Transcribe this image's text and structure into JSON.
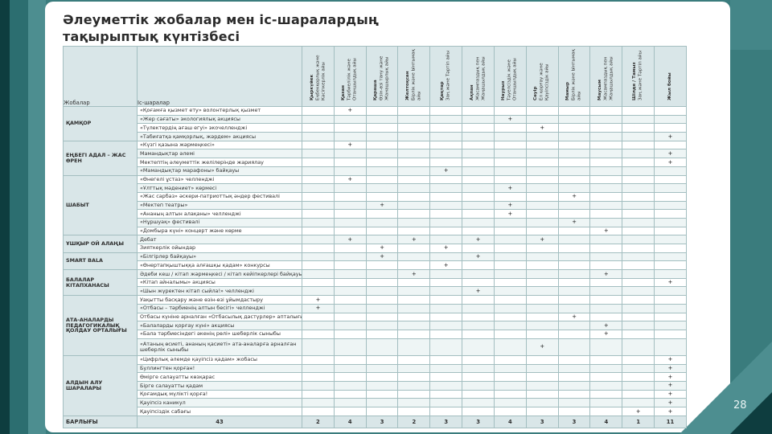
{
  "slide": {
    "title": "Әлеуметтік жобалар мен іс-шаралардың\nтақырыптық күнтізбесі",
    "page_number": "28"
  },
  "colors": {
    "background_teal": "#3a7c7d",
    "dark_teal": "#0e3d3f",
    "mid_teal": "#2c6e70",
    "light_teal": "#4d8e90",
    "card_white": "#ffffff",
    "header_fill": "#d9e6e8",
    "stripe_fill": "#eef5f5",
    "grid_line": "#a3bec0"
  },
  "table": {
    "col1_header": "Жобалар",
    "col2_header": "Іс-шаралар",
    "mark_symbol": "+",
    "months": [
      {
        "month": "Қыркүйек",
        "theme": "Еңбекқорлық және Кәсіпкерлік айы"
      },
      {
        "month": "Қазан",
        "theme": "Тәрбиелілік және Отаншылдық айы"
      },
      {
        "month": "Қараша",
        "theme": "Өзін-өзі тану және Жанашырлық айы"
      },
      {
        "month": "Желтоқсан",
        "theme": "Бірлік және Ынтымақ айы"
      },
      {
        "month": "Қаңтар",
        "theme": "Заң және Тәртіп айы"
      },
      {
        "month": "Ақпан",
        "theme": "Жасампаздық пен Жаңашылдық айы"
      },
      {
        "month": "Наурыз",
        "theme": "Тәуелсіздік және Отаншылдық айы"
      },
      {
        "month": "Сәуір",
        "theme": "Ел қорғау және Қауіпсіздік айы"
      },
      {
        "month": "Мамыр",
        "theme": "Бірлік және Ынтымақ айы"
      },
      {
        "month": "Маусым",
        "theme": "Жасампаздық пен Жаңашылдық айы"
      },
      {
        "month": "Шілде / Тамыз",
        "theme": "Заң және Тәртіп айы"
      },
      {
        "month": "Жыл бойы",
        "theme": ""
      }
    ],
    "groups": [
      {
        "name": "ҚАМҚОР",
        "activities": [
          {
            "label": "«Қоғамға қызмет ету» волонтерлық қызмет",
            "marks": [
              2
            ]
          },
          {
            "label": "«Жер сағаты» экологиялық акциясы",
            "marks": [
              7
            ]
          },
          {
            "label": "«Түлектердің ағаш егуі» экочелленджі",
            "marks": [
              8
            ]
          },
          {
            "label": "«Табиғатқа қамқорлық, жәрдем» акциясы",
            "marks": [
              12
            ]
          }
        ]
      },
      {
        "name": "ЕҢБЕГІ АДАЛ – ЖАС ӨРЕН",
        "activities": [
          {
            "label": "«Күзгі қазына жәрмеңкесі»",
            "marks": [
              2
            ]
          },
          {
            "label": "Мамандықтар әлемі",
            "marks": [
              12
            ]
          },
          {
            "label": "Мектептің әлеуметтік желілерінде жариялау",
            "marks": [
              12
            ]
          },
          {
            "label": "«Мамандықтар марафоны» байқауы",
            "marks": [
              5
            ]
          }
        ]
      },
      {
        "name": "ШАБЫТ",
        "activities": [
          {
            "label": "«Өнегелі ұстаз» челленджі",
            "marks": [
              2
            ]
          },
          {
            "label": "«Ұлттық мәдениет» көрмесі",
            "marks": [
              7
            ]
          },
          {
            "label": "«Жас сарбаз» әскери-патриоттық әндер фестивалі",
            "marks": [
              9
            ]
          },
          {
            "label": "«Мектеп театры»",
            "marks": [
              3,
              7
            ]
          },
          {
            "label": "«Ананың алтын алақаны» челленджі",
            "marks": [
              7
            ]
          },
          {
            "label": "«Нұршуақ» фестивалі",
            "marks": [
              9
            ]
          },
          {
            "label": "«Домбыра күні» концерт және көрме",
            "marks": [
              10
            ]
          }
        ]
      },
      {
        "name": "ҰШҚЫР ОЙ АЛАҢЫ",
        "activities": [
          {
            "label": "Дебат",
            "marks": [
              2,
              4,
              6,
              8
            ]
          },
          {
            "label": "Зияткерлік ойындар",
            "marks": [
              3,
              5
            ]
          }
        ]
      },
      {
        "name": "SMART BALA",
        "activities": [
          {
            "label": "«Білгірлер байқауы»",
            "marks": [
              3,
              6
            ]
          },
          {
            "label": "«Өнертапқыштыққа алғашқы қадам» конкурсы",
            "marks": [
              5
            ]
          }
        ]
      },
      {
        "name": "БАЛАЛАР КІТАПХАНАСЫ",
        "activities": [
          {
            "label": "Әдеби кеш / кітап жәрмеңкесі / кітап кейіпкерлері байқауы",
            "marks": [
              4,
              10
            ]
          },
          {
            "label": "«Кітап айналымы» акциясы",
            "marks": [
              12
            ]
          },
          {
            "label": "«Шын жүректен кітап сыйла!» челленджі",
            "marks": [
              6
            ]
          }
        ]
      },
      {
        "name": "АТА-АНАЛАРДЫ ПЕДАГОГИКАЛЫҚ ҚОЛДАУ ОРТАЛЫҒЫ",
        "activities": [
          {
            "label": "Уақытты басқару және өзін-өзі ұйымдастыру",
            "marks": [
              1
            ]
          },
          {
            "label": "«Отбасы – тәрбиенің алтын бесігі» челленджі",
            "marks": [
              1
            ]
          },
          {
            "label": "Отбасы күніне арналған «Отбасылық дәстүрлер» апталығы",
            "marks": [
              9
            ]
          },
          {
            "label": "«Балаларды қорғау күні» акциясы",
            "marks": [
              10
            ]
          },
          {
            "label": "«Бала тәрбиесіндегі әкенің рөлі» шеберлік сыныбы",
            "marks": [
              10
            ]
          },
          {
            "label": "«Атаның өсиеті, ананың қасиеті» ата-аналарға арналған шеберлік сыныбы",
            "marks": [
              8
            ],
            "tall": true
          }
        ]
      },
      {
        "name": "АЛДЫН АЛУ ШАРАЛАРЫ",
        "activities": [
          {
            "label": "«Цифрлық әлемде қауіпсіз қадам» жобасы",
            "marks": [
              12
            ]
          },
          {
            "label": "Буллингтен қорған!",
            "marks": [
              12
            ]
          },
          {
            "label": "Өмірге салауатты көзқарас",
            "marks": [
              12
            ]
          },
          {
            "label": "Бірге салауатты қадам",
            "marks": [
              12
            ]
          },
          {
            "label": "Қоғамдық мүлікті қорға!",
            "marks": [
              12
            ]
          },
          {
            "label": "Қауіпсіз каникул",
            "marks": [
              12
            ]
          },
          {
            "label": "Қауіпсіздік сабағы",
            "marks": [
              11,
              12
            ]
          }
        ]
      },
      {
        "name_note": ""
      }
    ],
    "total_label": "БАРЛЫҒЫ",
    "total_value": "43",
    "month_totals": [
      2,
      4,
      3,
      2,
      3,
      3,
      4,
      3,
      3,
      4,
      1,
      11
    ]
  }
}
